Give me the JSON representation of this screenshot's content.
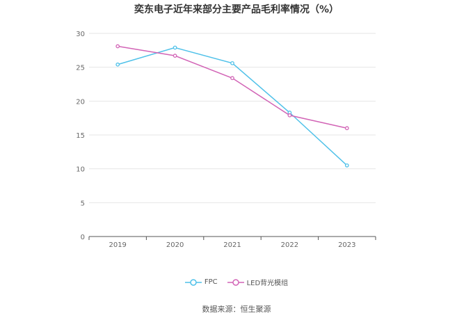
{
  "chart_data": {
    "type": "line",
    "title": "奕东电子近年来部分主要产品毛利率情况（%）",
    "categories": [
      "2019",
      "2020",
      "2021",
      "2022",
      "2023"
    ],
    "series": [
      {
        "name": "FPC",
        "color": "#4fc1e9",
        "values": [
          25.4,
          27.9,
          25.6,
          18.3,
          10.5
        ]
      },
      {
        "name": "LED背光模组",
        "color": "#d264b6",
        "values": [
          28.1,
          26.7,
          23.4,
          17.9,
          16.0
        ]
      }
    ],
    "ylim": [
      0,
      30
    ],
    "yticks": [
      0,
      5,
      10,
      15,
      20,
      25,
      30
    ],
    "grid": true,
    "legend_position": "bottom"
  },
  "source_note": "数据来源：恒生聚源"
}
